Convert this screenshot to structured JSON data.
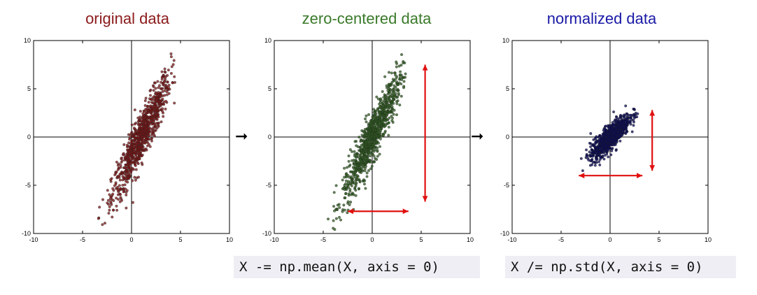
{
  "chart_data": [
    {
      "type": "scatter",
      "title": "original data",
      "title_color": "#8b1a1a",
      "point_color": "#7a1515",
      "xlim": [
        -10,
        10
      ],
      "ylim": [
        -10,
        10
      ],
      "xticks": [
        "-10",
        "-5",
        "0",
        "5",
        "10"
      ],
      "yticks": [
        "-10",
        "-5",
        "0",
        "5",
        "10"
      ],
      "tick_values": [
        -10,
        -5,
        0,
        5,
        10
      ],
      "center": [
        1,
        0
      ],
      "cloud": {
        "slope": 2.0,
        "spread_x": 1.5,
        "noise": 0.9,
        "x_range": [
          -3.5,
          4.5
        ]
      }
    },
    {
      "type": "scatter",
      "title": "zero-centered data",
      "title_color": "#3a7a2a",
      "point_color": "#2d5a1f",
      "xlim": [
        -10,
        10
      ],
      "ylim": [
        -10,
        10
      ],
      "xticks": [
        "-10",
        "-5",
        "0",
        "5",
        "10"
      ],
      "yticks": [
        "-10",
        "-5",
        "0",
        "5",
        "10"
      ],
      "tick_values": [
        -10,
        -5,
        0,
        5,
        10
      ],
      "center": [
        0,
        0
      ],
      "cloud": {
        "slope": 2.0,
        "spread_x": 1.5,
        "noise": 0.9,
        "x_range": [
          -4.5,
          3.5
        ]
      },
      "annotations": [
        {
          "type": "double-arrow",
          "color": "#e01010",
          "from": [
            -2.5,
            -7.7
          ],
          "to": [
            3.7,
            -7.7
          ]
        },
        {
          "type": "double-arrow",
          "color": "#e01010",
          "from": [
            5.4,
            7.5
          ],
          "to": [
            5.4,
            -6.7
          ]
        }
      ]
    },
    {
      "type": "scatter",
      "title": "normalized data",
      "title_color": "#1a1aa6",
      "point_color": "#0a0a55",
      "xlim": [
        -10,
        10
      ],
      "ylim": [
        -10,
        10
      ],
      "xticks": [
        "-10",
        "-5",
        "0",
        "5",
        "10"
      ],
      "yticks": [
        "-10",
        "-5",
        "0",
        "5",
        "10"
      ],
      "tick_values": [
        -10,
        -5,
        0,
        5,
        10
      ],
      "center": [
        0,
        0
      ],
      "cloud": {
        "slope": 0.95,
        "spread_x": 1.0,
        "noise": 0.45,
        "x_range": [
          -3.0,
          3.2
        ]
      },
      "annotations": [
        {
          "type": "double-arrow",
          "color": "#e01010",
          "from": [
            -3.2,
            -4.0
          ],
          "to": [
            3.3,
            -4.0
          ]
        },
        {
          "type": "double-arrow",
          "color": "#e01010",
          "from": [
            4.3,
            2.8
          ],
          "to": [
            4.3,
            -3.5
          ]
        }
      ]
    }
  ],
  "between_arrow": "➞",
  "code": {
    "step1": "X -= np.mean(X, axis = 0)",
    "step2": "X /= np.std(X, axis = 0)"
  }
}
